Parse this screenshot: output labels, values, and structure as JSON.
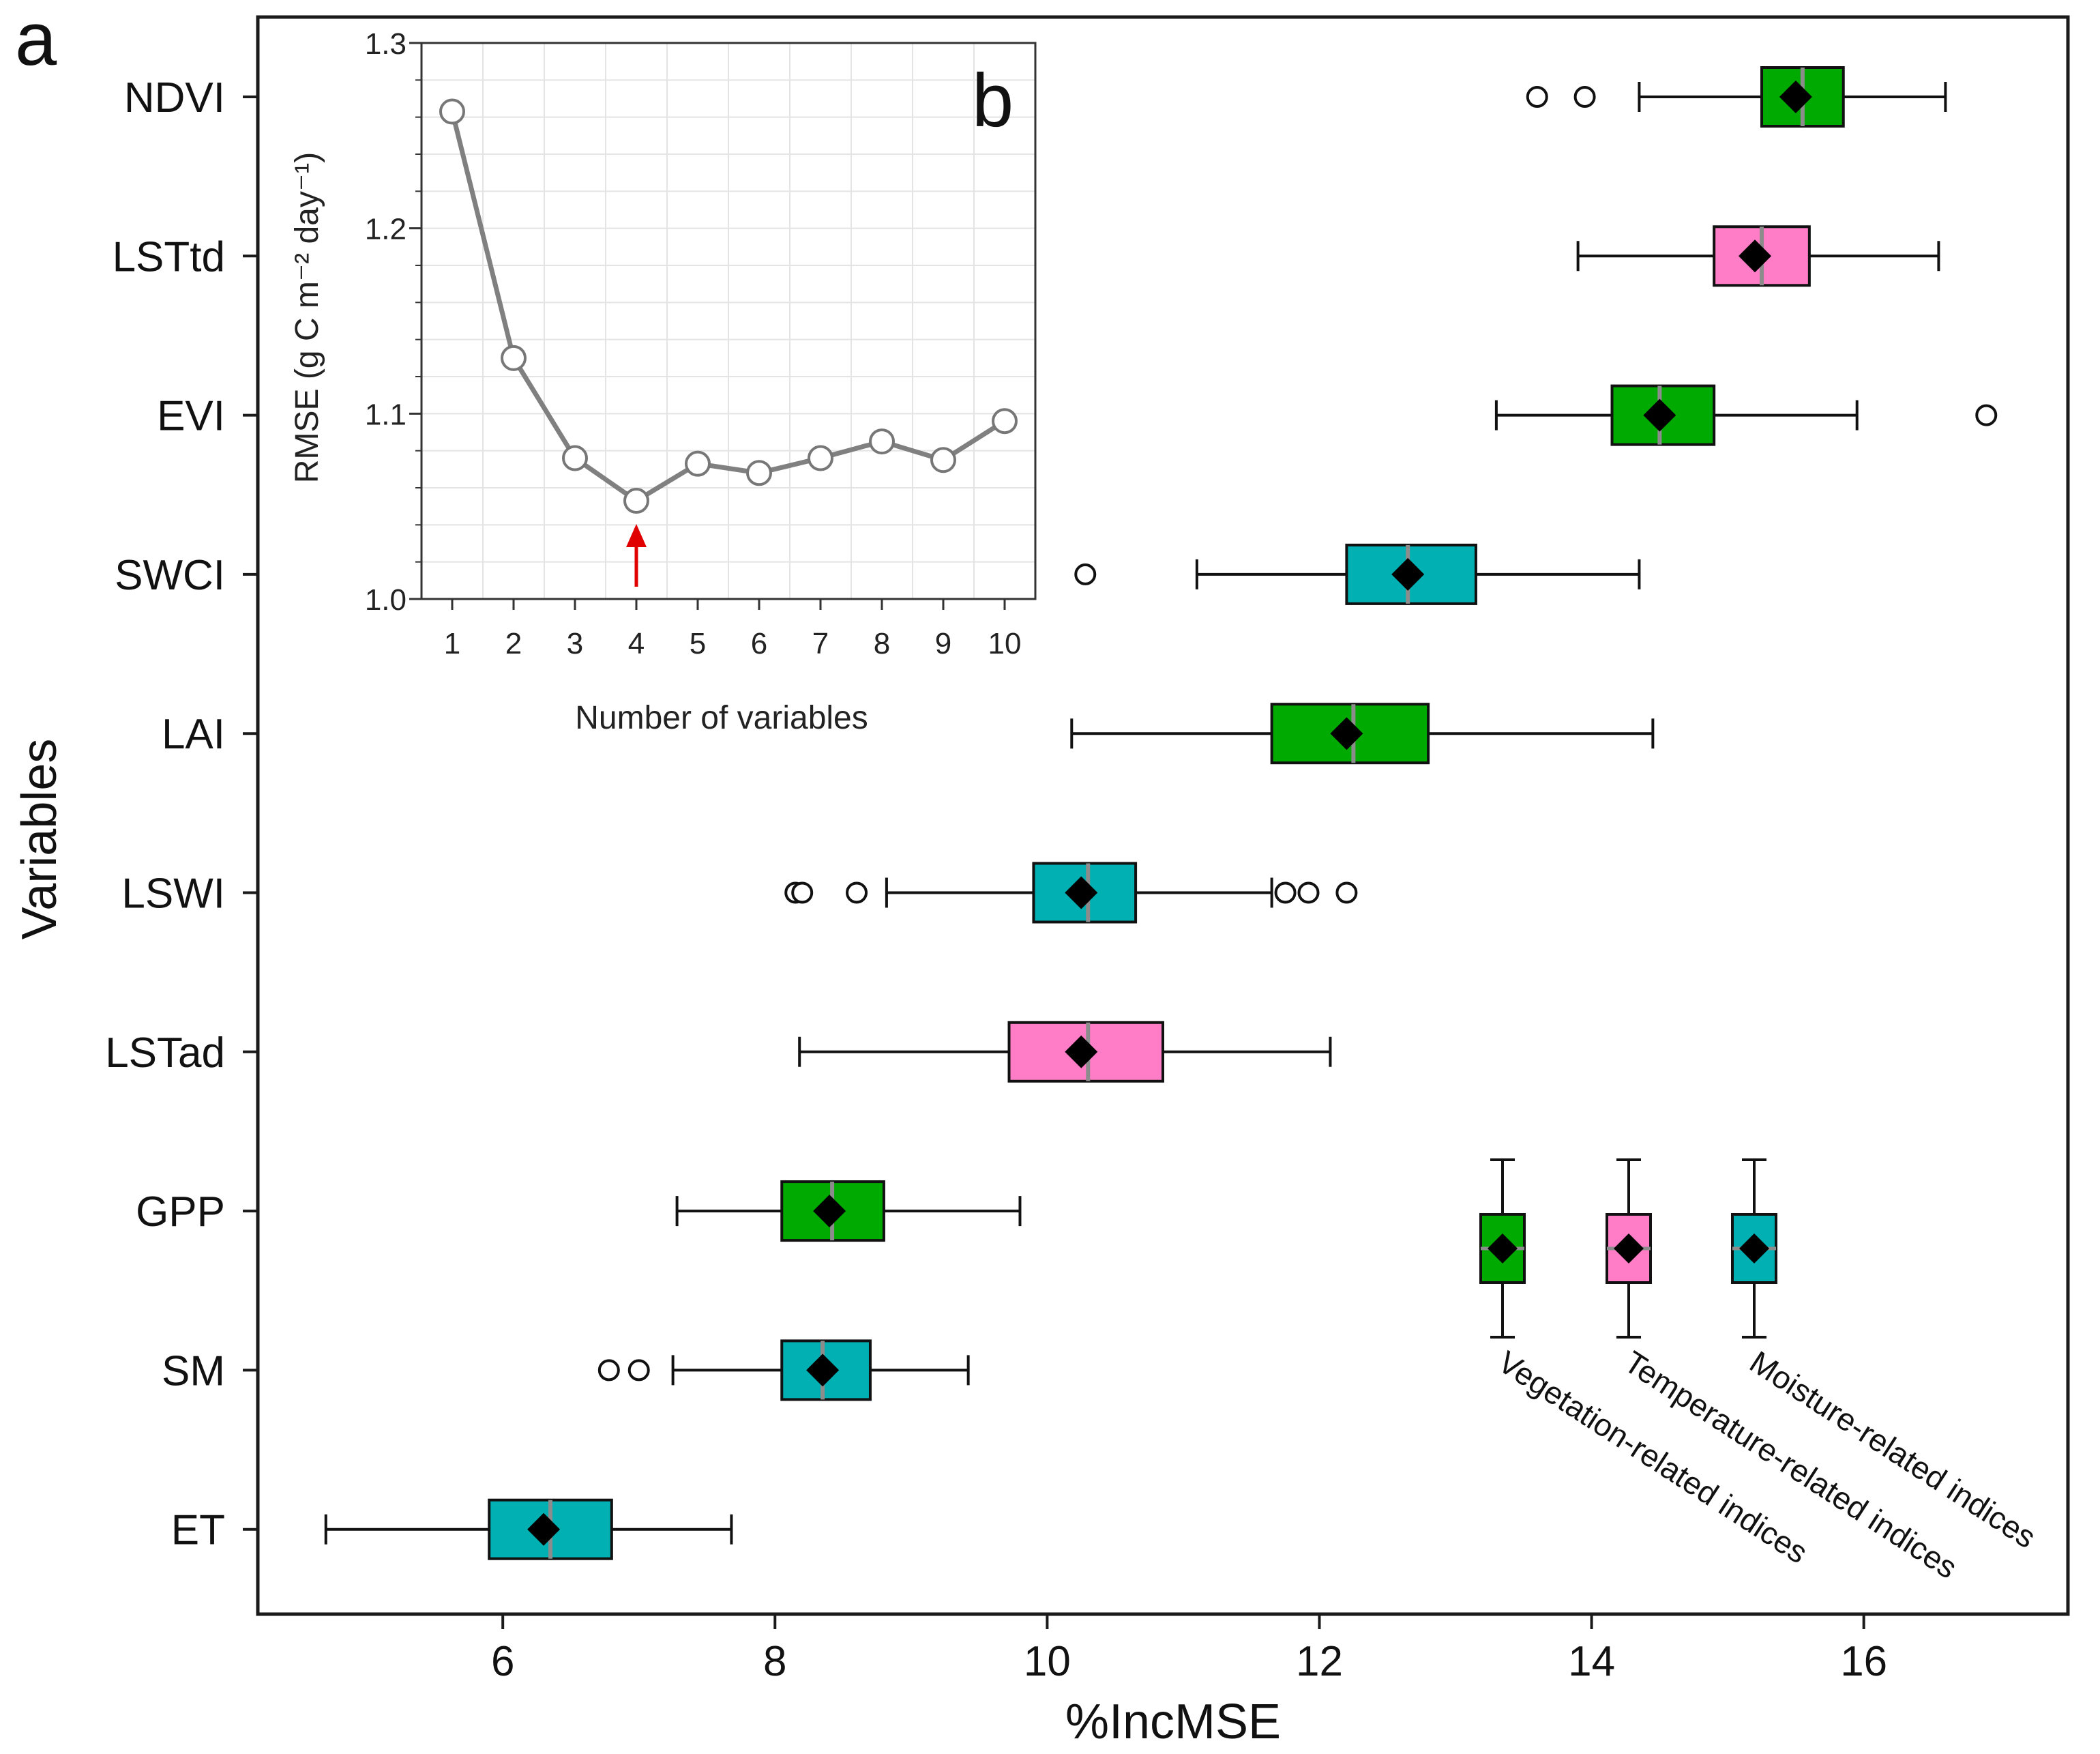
{
  "chart_data": [
    {
      "panel": "a",
      "type": "box",
      "orientation": "horizontal",
      "xlabel": "%IncMSE",
      "ylabel": "Variables",
      "xlim": [
        4.2,
        17.5
      ],
      "xticks": [
        6,
        8,
        10,
        12,
        14,
        16
      ],
      "categories": [
        "NDVI",
        "LSTtd",
        "EVI",
        "SWCI",
        "LAI",
        "LSWI",
        "LSTad",
        "GPP",
        "SM",
        "ET"
      ],
      "boxes": [
        {
          "variable": "NDVI",
          "group": "vegetation",
          "whisker_low": 14.35,
          "q1": 15.25,
          "median": 15.55,
          "q3": 15.85,
          "whisker_high": 16.6,
          "mean": 15.5,
          "outliers": [
            13.6,
            13.95
          ]
        },
        {
          "variable": "LSTtd",
          "group": "temperature",
          "whisker_low": 13.9,
          "q1": 14.9,
          "median": 15.25,
          "q3": 15.6,
          "whisker_high": 16.55,
          "mean": 15.2,
          "outliers": []
        },
        {
          "variable": "EVI",
          "group": "vegetation",
          "whisker_low": 13.3,
          "q1": 14.15,
          "median": 14.5,
          "q3": 14.9,
          "whisker_high": 15.95,
          "mean": 14.5,
          "outliers": [
            16.9
          ]
        },
        {
          "variable": "SWCI",
          "group": "moisture",
          "whisker_low": 11.1,
          "q1": 12.2,
          "median": 12.65,
          "q3": 13.15,
          "whisker_high": 14.35,
          "mean": 12.65,
          "outliers": [
            10.28
          ]
        },
        {
          "variable": "LAI",
          "group": "vegetation",
          "whisker_low": 10.18,
          "q1": 11.65,
          "median": 12.25,
          "q3": 12.8,
          "whisker_high": 14.45,
          "mean": 12.2,
          "outliers": []
        },
        {
          "variable": "LSWI",
          "group": "moisture",
          "whisker_low": 8.82,
          "q1": 9.9,
          "median": 10.3,
          "q3": 10.65,
          "whisker_high": 11.65,
          "mean": 10.25,
          "outliers": [
            8.15,
            8.2,
            8.6,
            11.75,
            11.92,
            12.2
          ]
        },
        {
          "variable": "LSTad",
          "group": "temperature",
          "whisker_low": 8.18,
          "q1": 9.72,
          "median": 10.3,
          "q3": 10.85,
          "whisker_high": 12.08,
          "mean": 10.25,
          "outliers": []
        },
        {
          "variable": "GPP",
          "group": "vegetation",
          "whisker_low": 7.28,
          "q1": 8.05,
          "median": 8.42,
          "q3": 8.8,
          "whisker_high": 9.8,
          "mean": 8.4,
          "outliers": []
        },
        {
          "variable": "SM",
          "group": "moisture",
          "whisker_low": 7.25,
          "q1": 8.05,
          "median": 8.35,
          "q3": 8.7,
          "whisker_high": 9.42,
          "mean": 8.35,
          "outliers": [
            6.78,
            7.0
          ]
        },
        {
          "variable": "ET",
          "group": "moisture",
          "whisker_low": 4.7,
          "q1": 5.9,
          "median": 6.35,
          "q3": 6.8,
          "whisker_high": 7.68,
          "mean": 6.3,
          "outliers": []
        }
      ],
      "legend": [
        {
          "group": "vegetation",
          "label": "Vegetation-related indices",
          "color": "#00AA00"
        },
        {
          "group": "temperature",
          "label": "Temperature-related indices",
          "color": "#FF7DC6"
        },
        {
          "group": "moisture",
          "label": "Moisture-related indices",
          "color": "#00B0B2"
        }
      ],
      "median_line_color": "#8C8C8C",
      "mean_marker": "black diamond"
    },
    {
      "panel": "b",
      "type": "line",
      "xlabel": "Number of variables",
      "ylabel": "RMSE (g C m⁻² day⁻¹)",
      "x": [
        1,
        2,
        3,
        4,
        5,
        6,
        7,
        8,
        9,
        10
      ],
      "y": [
        1.263,
        1.13,
        1.076,
        1.053,
        1.073,
        1.068,
        1.076,
        1.085,
        1.075,
        1.096
      ],
      "xlim": [
        0.5,
        10.5
      ],
      "ylim": [
        1.0,
        1.3
      ],
      "yticks": [
        1.0,
        1.1,
        1.2,
        1.3
      ],
      "ytick_labels": [
        "1.0",
        "1.1",
        "1.2",
        "1.3"
      ],
      "grid": true,
      "line_color": "#808080",
      "highlight_x": 4,
      "arrow_color": "#E00000"
    }
  ]
}
